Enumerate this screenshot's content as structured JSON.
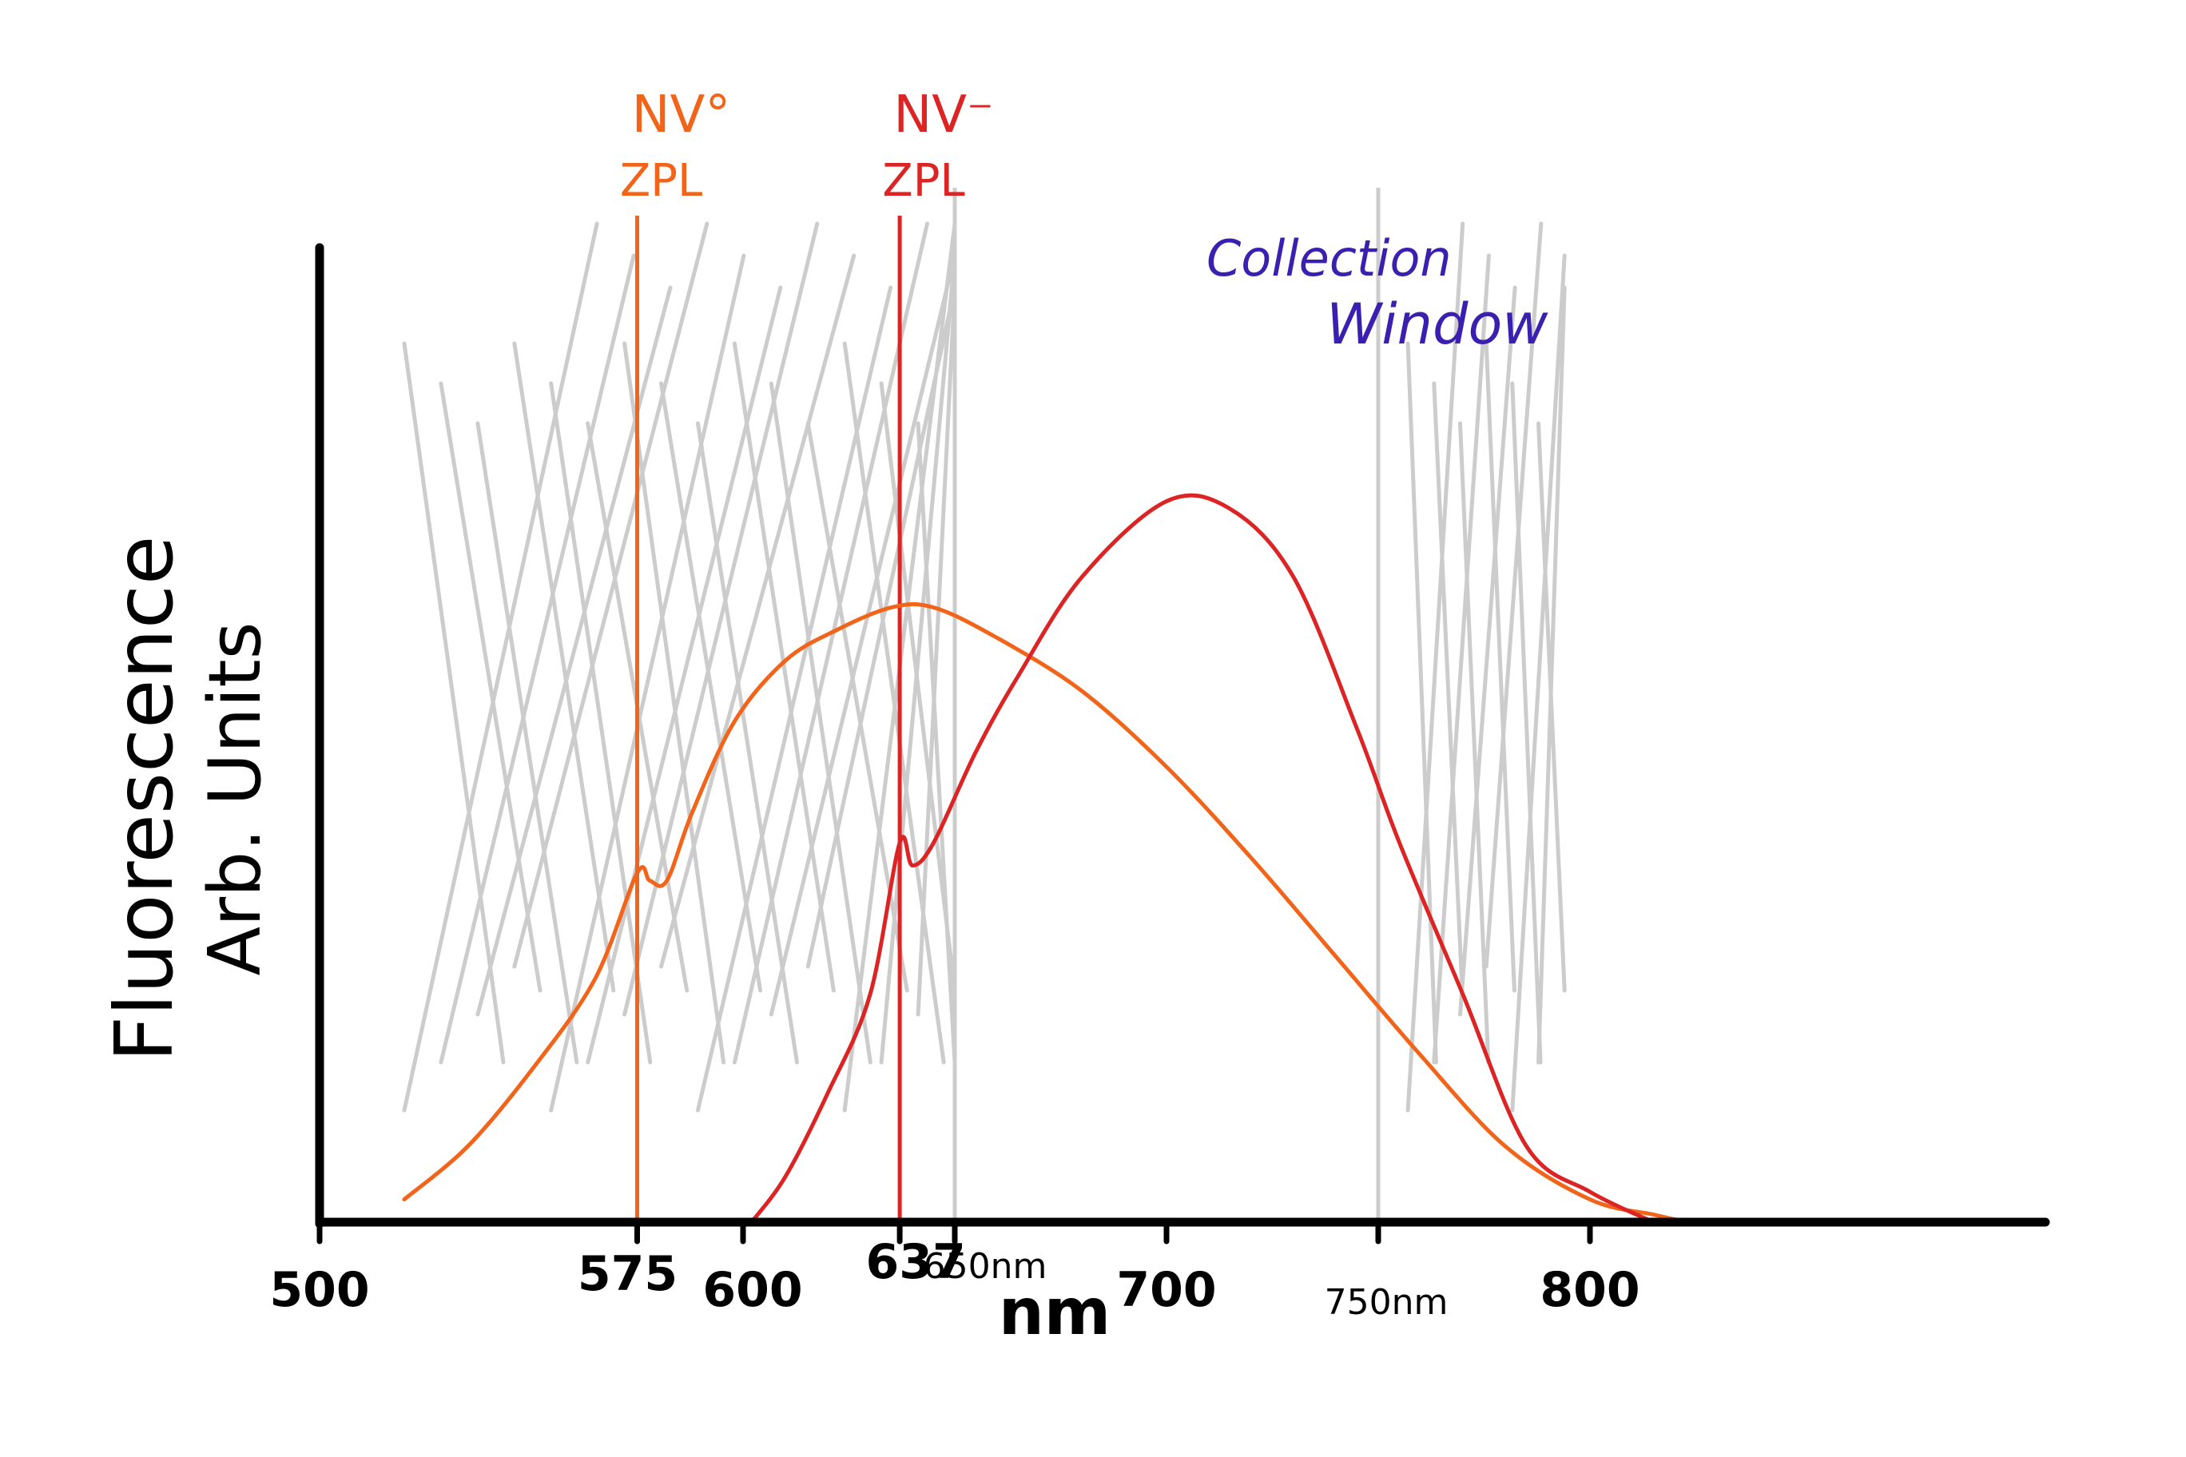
{
  "chart_data": {
    "type": "line",
    "xlabel": "nm",
    "ylabel_lines": [
      "Fluorescence",
      "Arb. Units"
    ],
    "xlim": [
      500,
      820
    ],
    "ylim": [
      0,
      1.0
    ],
    "x_ticks": [
      {
        "value": 500,
        "label": "500",
        "style": "bold"
      },
      {
        "value": 575,
        "label": "575",
        "style": "bold"
      },
      {
        "value": 600,
        "label": "600",
        "style": "bold"
      },
      {
        "value": 637,
        "label": "637",
        "style": "bold"
      },
      {
        "value": 650,
        "label": "650nm",
        "style": "light"
      },
      {
        "value": 700,
        "label": "700",
        "style": "bold"
      },
      {
        "value": 750,
        "label": "750nm",
        "style": "light"
      },
      {
        "value": 800,
        "label": "800",
        "style": "bold"
      }
    ],
    "series": [
      {
        "name": "NV0",
        "color": "#f26419",
        "x": [
          520,
          535,
          550,
          565,
          575,
          578,
          582,
          588,
          598,
          610,
          622,
          635,
          645,
          660,
          680,
          700,
          720,
          740,
          760,
          780,
          800,
          815,
          823
        ],
        "y": [
          0.03,
          0.1,
          0.2,
          0.32,
          0.46,
          0.45,
          0.45,
          0.54,
          0.66,
          0.74,
          0.78,
          0.81,
          0.81,
          0.77,
          0.7,
          0.6,
          0.48,
          0.35,
          0.22,
          0.1,
          0.03,
          0.01,
          0.0
        ]
      },
      {
        "name": "NV-",
        "color": "#dc2424",
        "x": [
          602,
          610,
          620,
          630,
          637,
          640,
          645,
          655,
          665,
          680,
          700,
          715,
          730,
          745,
          755,
          770,
          785,
          800,
          815
        ],
        "y": [
          0.0,
          0.06,
          0.17,
          0.3,
          0.5,
          0.47,
          0.5,
          0.62,
          0.72,
          0.85,
          0.95,
          0.94,
          0.85,
          0.65,
          0.5,
          0.3,
          0.1,
          0.04,
          0.0
        ]
      }
    ],
    "vertical_lines": [
      {
        "x": 575,
        "color": "#f26419",
        "label_lines": [
          "NV°",
          "ZPL"
        ]
      },
      {
        "x": 637,
        "color": "#dc2424",
        "label_lines": [
          "NV⁻",
          "ZPL"
        ]
      },
      {
        "x": 650,
        "color": "#cccccc"
      },
      {
        "x": 750,
        "color": "#cccccc"
      }
    ],
    "annotation_lines": [
      "Collection",
      "Window"
    ],
    "annotation_color": "#3a1fb0",
    "shaded_regions": [
      {
        "x_start": 520,
        "x_end": 650,
        "color": "#cccccc"
      },
      {
        "x_start": 757,
        "x_end": 794,
        "color": "#cccccc"
      }
    ]
  }
}
